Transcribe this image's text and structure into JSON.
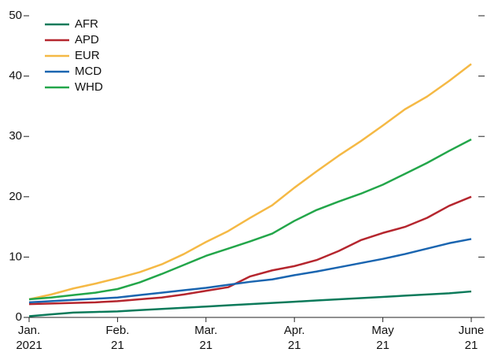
{
  "chart_data": {
    "type": "line",
    "categories": [
      "Jan.\n2021",
      null,
      null,
      null,
      "Feb.\n21",
      null,
      null,
      null,
      "Mar.\n21",
      null,
      null,
      null,
      "Apr.\n21",
      null,
      null,
      null,
      "May\n21",
      null,
      null,
      null,
      "June\n21"
    ],
    "series": [
      {
        "name": "AFR",
        "color": "#0b7a5a",
        "values": [
          0.2,
          0.5,
          0.8,
          0.9,
          1.0,
          1.2,
          1.4,
          1.6,
          1.8,
          2.0,
          2.2,
          2.4,
          2.6,
          2.8,
          3.0,
          3.2,
          3.4,
          3.6,
          3.8,
          4.0,
          4.3
        ]
      },
      {
        "name": "APD",
        "color": "#b5262e",
        "values": [
          2.2,
          2.3,
          2.4,
          2.5,
          2.7,
          3.0,
          3.3,
          3.8,
          4.4,
          5.0,
          6.8,
          7.8,
          8.5,
          9.5,
          11.0,
          12.8,
          14.0,
          15.0,
          16.5,
          18.5,
          20.0
        ]
      },
      {
        "name": "EUR",
        "color": "#f5b945",
        "values": [
          3.0,
          3.8,
          4.8,
          5.6,
          6.5,
          7.5,
          8.8,
          10.5,
          12.5,
          14.3,
          16.5,
          18.6,
          21.5,
          24.2,
          26.8,
          29.2,
          31.8,
          34.5,
          36.6,
          39.2,
          42.0
        ]
      },
      {
        "name": "MCD",
        "color": "#1a65b0",
        "values": [
          2.5,
          2.7,
          2.9,
          3.1,
          3.3,
          3.7,
          4.1,
          4.5,
          4.9,
          5.4,
          5.9,
          6.3,
          7.0,
          7.6,
          8.3,
          9.0,
          9.7,
          10.5,
          11.4,
          12.3,
          13.0
        ]
      },
      {
        "name": "WHD",
        "color": "#23a64a",
        "values": [
          3.0,
          3.3,
          3.7,
          4.1,
          4.7,
          5.8,
          7.2,
          8.7,
          10.2,
          11.4,
          12.6,
          13.9,
          16.0,
          17.8,
          19.2,
          20.5,
          22.0,
          23.8,
          25.6,
          27.6,
          29.5
        ]
      }
    ],
    "ylim": [
      0,
      50
    ],
    "yticks": [
      0,
      10,
      20,
      30,
      40,
      50
    ],
    "legend": "upper-left"
  }
}
